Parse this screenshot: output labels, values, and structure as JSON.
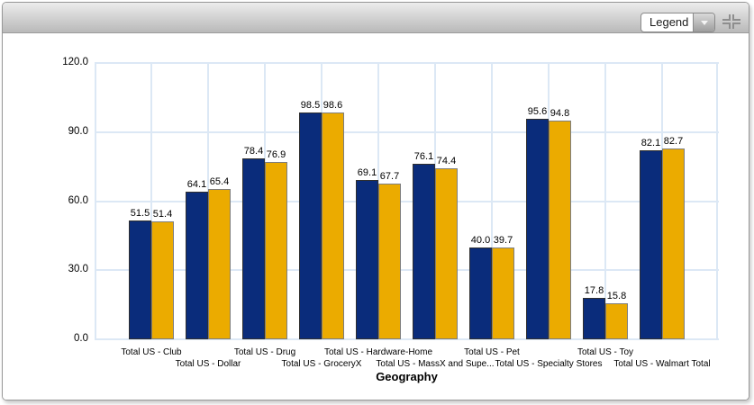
{
  "toolbar": {
    "legend_dropdown": {
      "value": "Legend",
      "icon": "chevron-down-icon"
    },
    "collapse_icon": "collapse-arrows-icon"
  },
  "chart_data": {
    "type": "bar",
    "title": "",
    "xlabel": "Geography",
    "ylabel": "",
    "ylim": [
      0,
      120
    ],
    "yticks": [
      0,
      30,
      60,
      90,
      120
    ],
    "ytick_format": "one-decimal",
    "grid": true,
    "legend_position": "collapsed-dropdown",
    "value_labels": true,
    "categories": [
      "Total US - Club",
      "Total US - Dollar",
      "Total US - Drug",
      "Total US - GroceryX",
      "Total US - Hardware-Home",
      "Total US - MassX and Supe...",
      "Total US - Pet",
      "Total US - Specialty Stores",
      "Total US - Toy",
      "Total US - Walmart Total"
    ],
    "series": [
      {
        "color": "#0A2C7B",
        "values": [
          51.5,
          64.1,
          78.4,
          98.5,
          69.1,
          76.1,
          40.0,
          95.6,
          17.8,
          82.1
        ]
      },
      {
        "color": "#EBAB00",
        "values": [
          51.4,
          65.4,
          76.9,
          98.6,
          67.7,
          74.4,
          39.7,
          94.8,
          15.8,
          82.7
        ]
      }
    ]
  },
  "colors": {
    "grid": "#DCE8F5",
    "bar_border_dark": "#2F2F2F",
    "bar_border_light": "#7E7E7E",
    "toolbar_top": "#ECECEC",
    "toolbar_bottom": "#B9B9B9"
  }
}
